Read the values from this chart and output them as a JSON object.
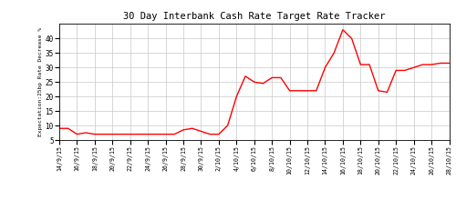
{
  "title": "30 Day Interbank Cash Rate Target Rate Tracker",
  "ylabel": "Expectation:25bp Rate Decrease %",
  "ylim": [
    5,
    45
  ],
  "yticks": [
    5,
    10,
    15,
    20,
    25,
    30,
    35,
    40
  ],
  "line_color": "#ff0000",
  "line_width": 1.0,
  "bg_color": "#ffffff",
  "grid_color": "#c8c8c8",
  "values": [
    9.0,
    9.0,
    7.0,
    7.5,
    7.0,
    7.0,
    7.0,
    7.0,
    7.0,
    7.0,
    7.0,
    7.0,
    7.0,
    7.0,
    8.5,
    9.0,
    8.0,
    7.0,
    7.0,
    10.0,
    20.0,
    27.0,
    25.0,
    24.5,
    26.5,
    26.5,
    22.0,
    22.0,
    22.0,
    22.0,
    30.0,
    35.0,
    43.0,
    40.0,
    31.0,
    31.0,
    22.0,
    21.5,
    29.0,
    29.0,
    30.0,
    31.0,
    31.0,
    31.5,
    31.5
  ],
  "xtick_positions": [
    0,
    2,
    4,
    8,
    10,
    14,
    16,
    18,
    20,
    22,
    24,
    26,
    28,
    30,
    32,
    34,
    36,
    38,
    40,
    42,
    44
  ],
  "xtick_labels": [
    "14/9/15",
    "16/9/15",
    "18/9/15",
    "22/9/15",
    "24/9/15",
    "28/9/15",
    "30/9/15",
    "2/10/15",
    "4/10/15",
    "6/10/15",
    "8/10/15",
    "10/10/15",
    "12/10/15",
    "14/10/15",
    "16/10/15",
    "18/10/15",
    "20/10/15",
    "22/10/15",
    "24/10/15",
    "26/10/15",
    "28/10/15"
  ],
  "xtick_positions2": [
    0,
    2,
    4,
    6,
    8,
    10,
    12,
    14,
    16,
    18,
    20,
    22,
    24,
    26,
    28,
    30,
    32,
    34,
    36,
    38,
    40,
    42,
    44
  ],
  "xtick_labels2": [
    "14/9/15",
    "16/9/15",
    "18/9/15",
    "20/9/15",
    "22/9/15",
    "24/9/15",
    "26/9/15",
    "28/9/15",
    "30/9/15",
    "2/10/15",
    "4/10/15",
    "6/10/15",
    "8/10/15",
    "10/10/15",
    "12/10/15",
    "14/10/15",
    "16/10/15",
    "18/10/15",
    "20/10/15",
    "22/10/15",
    "24/10/15",
    "26/10/15",
    "28/10/15"
  ]
}
